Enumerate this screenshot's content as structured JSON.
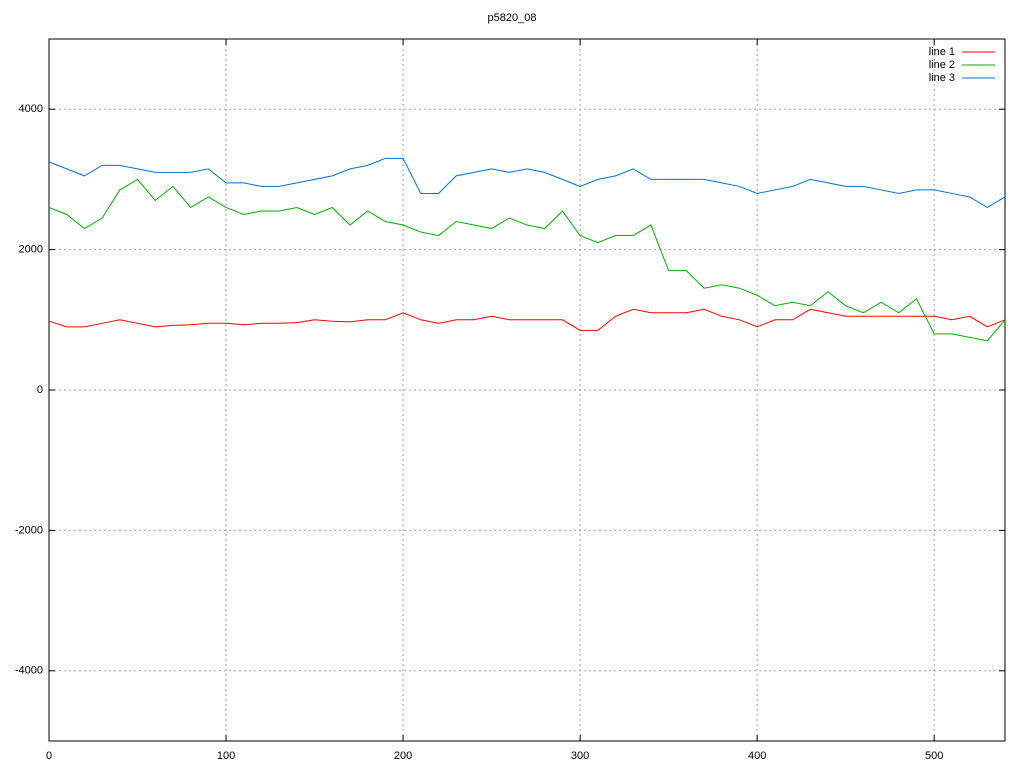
{
  "chart_data": {
    "type": "line",
    "title": "p5820_08",
    "x": [
      0,
      10,
      20,
      30,
      40,
      50,
      60,
      70,
      80,
      90,
      100,
      110,
      120,
      130,
      140,
      150,
      160,
      170,
      180,
      190,
      200,
      210,
      220,
      230,
      240,
      250,
      260,
      270,
      280,
      290,
      300,
      310,
      320,
      330,
      340,
      350,
      360,
      370,
      380,
      390,
      400,
      410,
      420,
      430,
      440,
      450,
      460,
      470,
      480,
      490,
      500,
      510,
      520,
      530,
      540
    ],
    "series": [
      {
        "name": "line 1",
        "color": "#ff0000",
        "values": [
          980,
          900,
          900,
          950,
          1000,
          950,
          900,
          920,
          930,
          950,
          950,
          930,
          950,
          950,
          960,
          1000,
          980,
          970,
          1000,
          1000,
          1100,
          1000,
          950,
          1000,
          1000,
          1050,
          1000,
          1000,
          1000,
          1000,
          850,
          850,
          1050,
          1150,
          1100,
          1100,
          1100,
          1150,
          1050,
          1000,
          900,
          1000,
          1000,
          1150,
          1100,
          1050,
          1050,
          1050,
          1050,
          1050,
          1050,
          1000,
          1050,
          900,
          1000
        ]
      },
      {
        "name": "line 2",
        "color": "#00b000",
        "values": [
          2600,
          2500,
          2300,
          2450,
          2850,
          3000,
          2700,
          2900,
          2600,
          2750,
          2600,
          2500,
          2550,
          2550,
          2600,
          2500,
          2600,
          2350,
          2550,
          2400,
          2350,
          2250,
          2200,
          2400,
          2350,
          2300,
          2450,
          2350,
          2300,
          2550,
          2200,
          2100,
          2200,
          2200,
          2350,
          1700,
          1700,
          1450,
          1500,
          1450,
          1350,
          1200,
          1250,
          1200,
          1400,
          1200,
          1100,
          1250,
          1100,
          1300,
          800,
          800,
          750,
          700,
          1000
        ]
      },
      {
        "name": "line 3",
        "color": "#0072d0",
        "values": [
          3250,
          3150,
          3050,
          3200,
          3200,
          3150,
          3100,
          3100,
          3100,
          3150,
          2950,
          2950,
          2900,
          2900,
          2950,
          3000,
          3050,
          3150,
          3200,
          3300,
          3300,
          2800,
          2800,
          3050,
          3100,
          3150,
          3100,
          3150,
          3100,
          3000,
          2900,
          3000,
          3050,
          3150,
          3000,
          3000,
          3000,
          3000,
          2950,
          2900,
          2800,
          2850,
          2900,
          3000,
          2950,
          2900,
          2900,
          2850,
          2800,
          2850,
          2850,
          2800,
          2750,
          2600,
          2750
        ]
      }
    ],
    "xlim": [
      0,
      540
    ],
    "ylim": [
      -5000,
      5000
    ],
    "xticks": [
      0,
      100,
      200,
      300,
      400,
      500
    ],
    "yticks": [
      -4000,
      -2000,
      0,
      2000,
      4000
    ],
    "grid": true,
    "legend": "top-right"
  }
}
